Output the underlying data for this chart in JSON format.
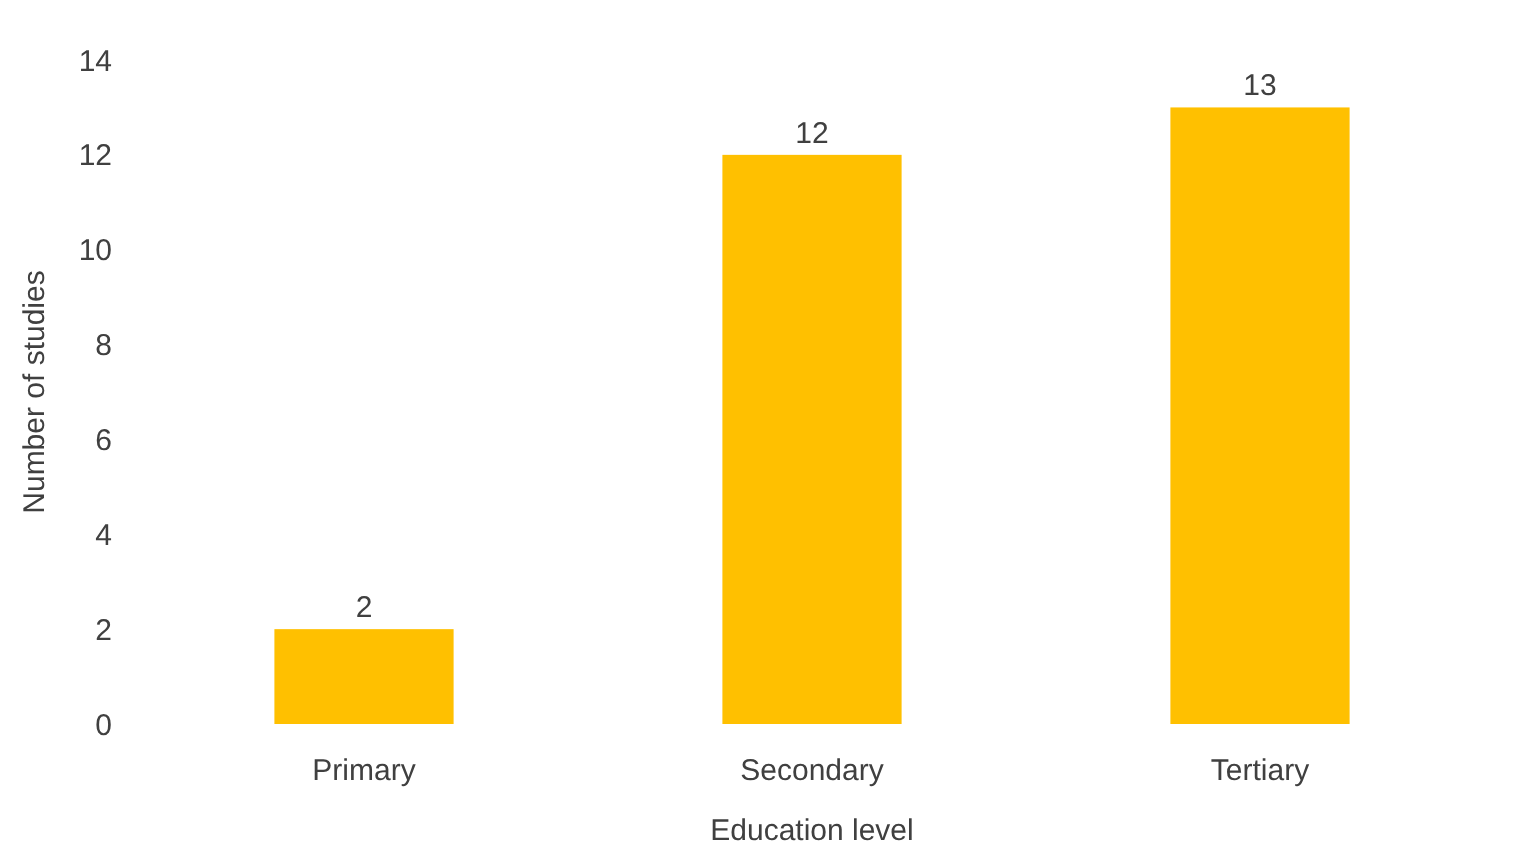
{
  "chart_data": {
    "type": "bar",
    "xlabel": "Education level",
    "ylabel": "Number of studies",
    "categories": [
      "Primary",
      "Secondary",
      "Tertiary"
    ],
    "values": [
      2,
      12,
      13
    ],
    "color": "#ffc000",
    "ylim": [
      0,
      14
    ],
    "yticks": [
      0,
      2,
      4,
      6,
      8,
      10,
      12,
      14
    ],
    "grid": false,
    "data_labels": true
  }
}
